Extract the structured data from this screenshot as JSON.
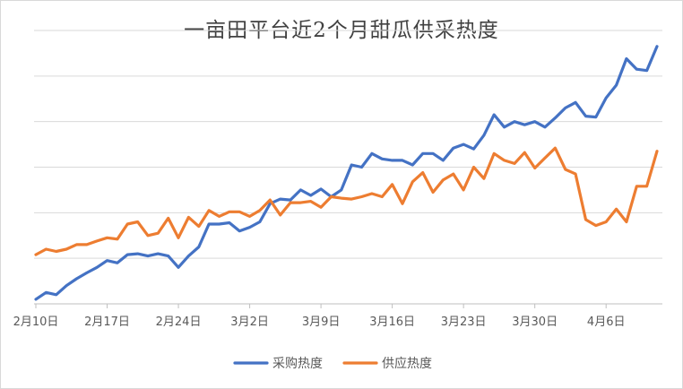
{
  "chart_data": {
    "type": "line",
    "title": "一亩田平台近2个月甜瓜供采热度",
    "xlabel": "",
    "ylabel": "",
    "x_tick_labels": [
      "2月10日",
      "2月17日",
      "2月24日",
      "3月2日",
      "3月9日",
      "3月16日",
      "3月23日",
      "3月30日",
      "4月6日"
    ],
    "x_tick_start_index": 0,
    "x_tick_step": 7,
    "num_points": 62,
    "ylim": [
      0,
      6
    ],
    "y_gridlines": [
      1,
      2,
      3,
      4,
      5,
      6
    ],
    "y_tick_labels_shown": false,
    "legend_position": "bottom",
    "series": [
      {
        "name": "采购热度",
        "color": "#4472C4",
        "values": [
          0.1,
          0.25,
          0.2,
          0.4,
          0.55,
          0.68,
          0.8,
          0.95,
          0.9,
          1.08,
          1.1,
          1.05,
          1.1,
          1.05,
          0.8,
          1.05,
          1.25,
          1.75,
          1.75,
          1.78,
          1.6,
          1.68,
          1.8,
          2.2,
          2.3,
          2.28,
          2.5,
          2.38,
          2.52,
          2.35,
          2.5,
          3.05,
          3.0,
          3.3,
          3.18,
          3.15,
          3.15,
          3.05,
          3.3,
          3.3,
          3.15,
          3.42,
          3.5,
          3.4,
          3.7,
          4.15,
          3.88,
          4.0,
          3.93,
          4.0,
          3.88,
          4.08,
          4.3,
          4.42,
          4.12,
          4.1,
          4.52,
          4.8,
          5.38,
          5.15,
          5.12,
          5.65
        ]
      },
      {
        "name": "供应热度",
        "color": "#ED7D31",
        "values": [
          1.08,
          1.2,
          1.15,
          1.2,
          1.3,
          1.3,
          1.38,
          1.45,
          1.42,
          1.75,
          1.8,
          1.5,
          1.55,
          1.88,
          1.45,
          1.9,
          1.7,
          2.05,
          1.92,
          2.02,
          2.02,
          1.92,
          2.05,
          2.28,
          1.95,
          2.22,
          2.22,
          2.25,
          2.12,
          2.35,
          2.32,
          2.3,
          2.35,
          2.42,
          2.35,
          2.62,
          2.2,
          2.68,
          2.88,
          2.45,
          2.72,
          2.85,
          2.5,
          3.0,
          2.75,
          3.3,
          3.15,
          3.08,
          3.32,
          2.98,
          3.2,
          3.42,
          2.95,
          2.85,
          1.85,
          1.72,
          1.8,
          2.08,
          1.8,
          2.58,
          2.58,
          3.35
        ]
      }
    ]
  }
}
